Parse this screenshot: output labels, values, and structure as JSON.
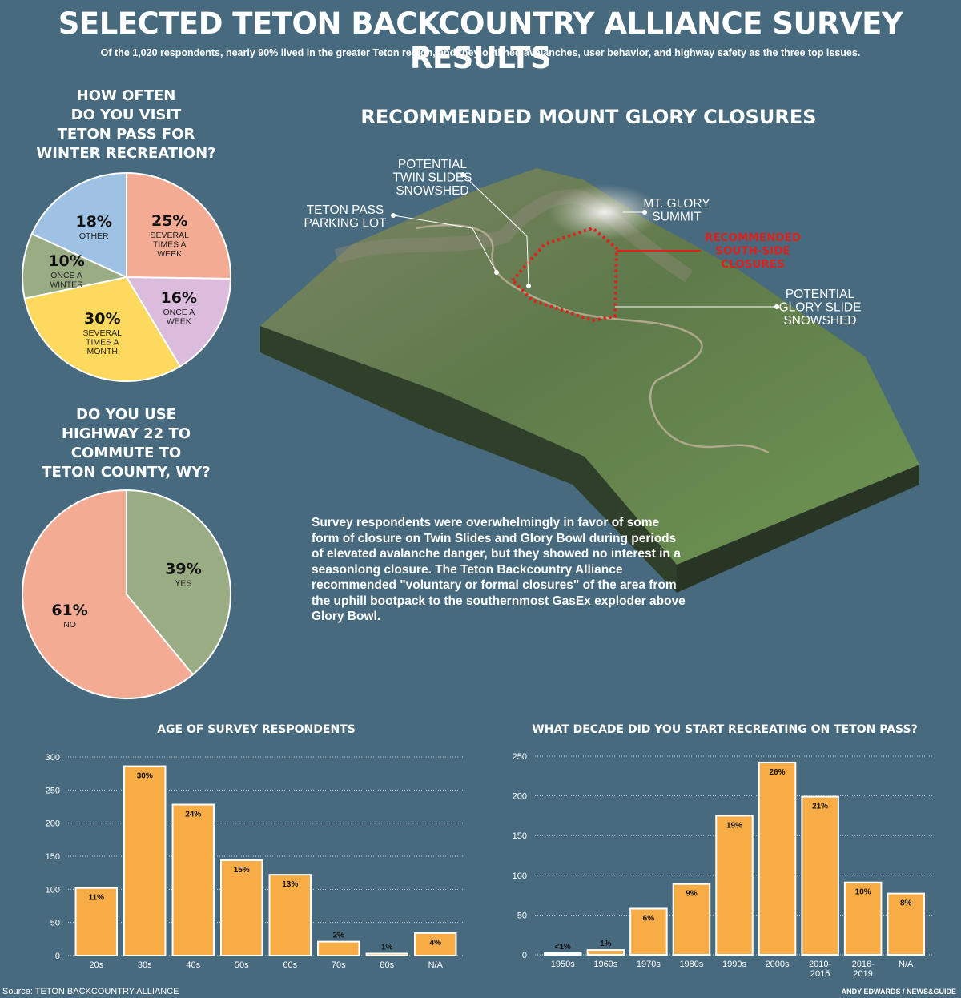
{
  "header": {
    "title": "SELECTED TETON BACKCOUNTRY ALLIANCE SURVEY RESULTS",
    "subtitle": "Of the 1,020 respondents, nearly 90% lived in the greater Teton region, and they outlined avalanches, user behavior, and highway safety as the three top issues."
  },
  "map": {
    "title": "RECOMMENDED MOUNT GLORY CLOSURES",
    "callouts": {
      "twin_slides": [
        "POTENTIAL",
        "TWIN SLIDES",
        "SNOWSHED"
      ],
      "parking": [
        "TETON PASS",
        "PARKING LOT"
      ],
      "summit": [
        "MT. GLORY",
        "SUMMIT"
      ],
      "closures": [
        "RECOMMENDED",
        "SOUTH-SIDE",
        "CLOSURES"
      ],
      "glory_slide": [
        "POTENTIAL",
        "GLORY SLIDE",
        "SNOWSHED"
      ]
    },
    "colors": {
      "closure": "#e0201b"
    },
    "narrative": "Survey respondents were overwhelmingly in favor of some form of closure on Twin Slides and Glory Bowl during periods of elevated avalanche danger, but they showed no interest in a seasonlong closure. The Teton Backcountry Alliance recommended \"voluntary or formal closures\" of the area from the uphill bootpack to the southernmost GasEx exploder above Glory Bowl."
  },
  "chart_data": [
    {
      "type": "pie",
      "title": "HOW OFTEN DO YOU VISIT TETON PASS FOR WINTER RECREATION?",
      "slices": [
        {
          "label": [
            "SEVERAL",
            "TIMES A",
            "WEEK"
          ],
          "value": 25,
          "display": "25%",
          "color": "#f4ab94"
        },
        {
          "label": [
            "ONCE A",
            "WEEK"
          ],
          "value": 16,
          "display": "16%",
          "color": "#dcbcdc"
        },
        {
          "label": [
            "SEVERAL",
            "TIMES A",
            "MONTH"
          ],
          "value": 30,
          "display": "30%",
          "color": "#fdd95e"
        },
        {
          "label": [
            "ONCE A",
            "WINTER"
          ],
          "value": 10,
          "display": "10%",
          "color": "#9aac84"
        },
        {
          "label": [
            "OTHER"
          ],
          "value": 18,
          "display": "18%",
          "color": "#9fc2e4"
        }
      ]
    },
    {
      "type": "pie",
      "title": "DO YOU USE HIGHWAY 22 TO COMMUTE TO TETON COUNTY, WY?",
      "slices": [
        {
          "label": [
            "YES"
          ],
          "value": 39,
          "display": "39%",
          "color": "#9aac84"
        },
        {
          "label": [
            "NO"
          ],
          "value": 61,
          "display": "61%",
          "color": "#f4ab94"
        }
      ]
    },
    {
      "type": "bar",
      "title": "AGE OF SURVEY RESPONDENTS",
      "categories": [
        "20s",
        "30s",
        "40s",
        "50s",
        "60s",
        "70s",
        "80s",
        "N/A"
      ],
      "values": [
        102,
        286,
        228,
        144,
        122,
        21,
        3,
        34
      ],
      "labels": [
        "11%",
        "30%",
        "24%",
        "15%",
        "13%",
        "2%",
        "1%",
        "4%"
      ],
      "ylim": [
        0,
        300
      ],
      "yticks": [
        0,
        50,
        100,
        150,
        200,
        250,
        300
      ],
      "grid": true
    },
    {
      "type": "bar",
      "title": "WHAT DECADE DID YOU START RECREATING ON TETON PASS?",
      "categories": [
        "1950s",
        "1960s",
        "1970s",
        "1980s",
        "1990s",
        "2000s",
        "2010-\n2015",
        "2016-\n2019",
        "N/A"
      ],
      "values": [
        2,
        6,
        58,
        89,
        175,
        242,
        199,
        91,
        77
      ],
      "labels": [
        "<1%",
        "1%",
        "6%",
        "9%",
        "19%",
        "26%",
        "21%",
        "10%",
        "8%"
      ],
      "ylim": [
        0,
        250
      ],
      "yticks": [
        0,
        50,
        100,
        150,
        200,
        250
      ],
      "grid": true
    }
  ],
  "footer": {
    "source": "Source: TETON BACKCOUNTRY ALLIANCE",
    "credit": "ANDY EDWARDS / NEWS&GUIDE"
  }
}
